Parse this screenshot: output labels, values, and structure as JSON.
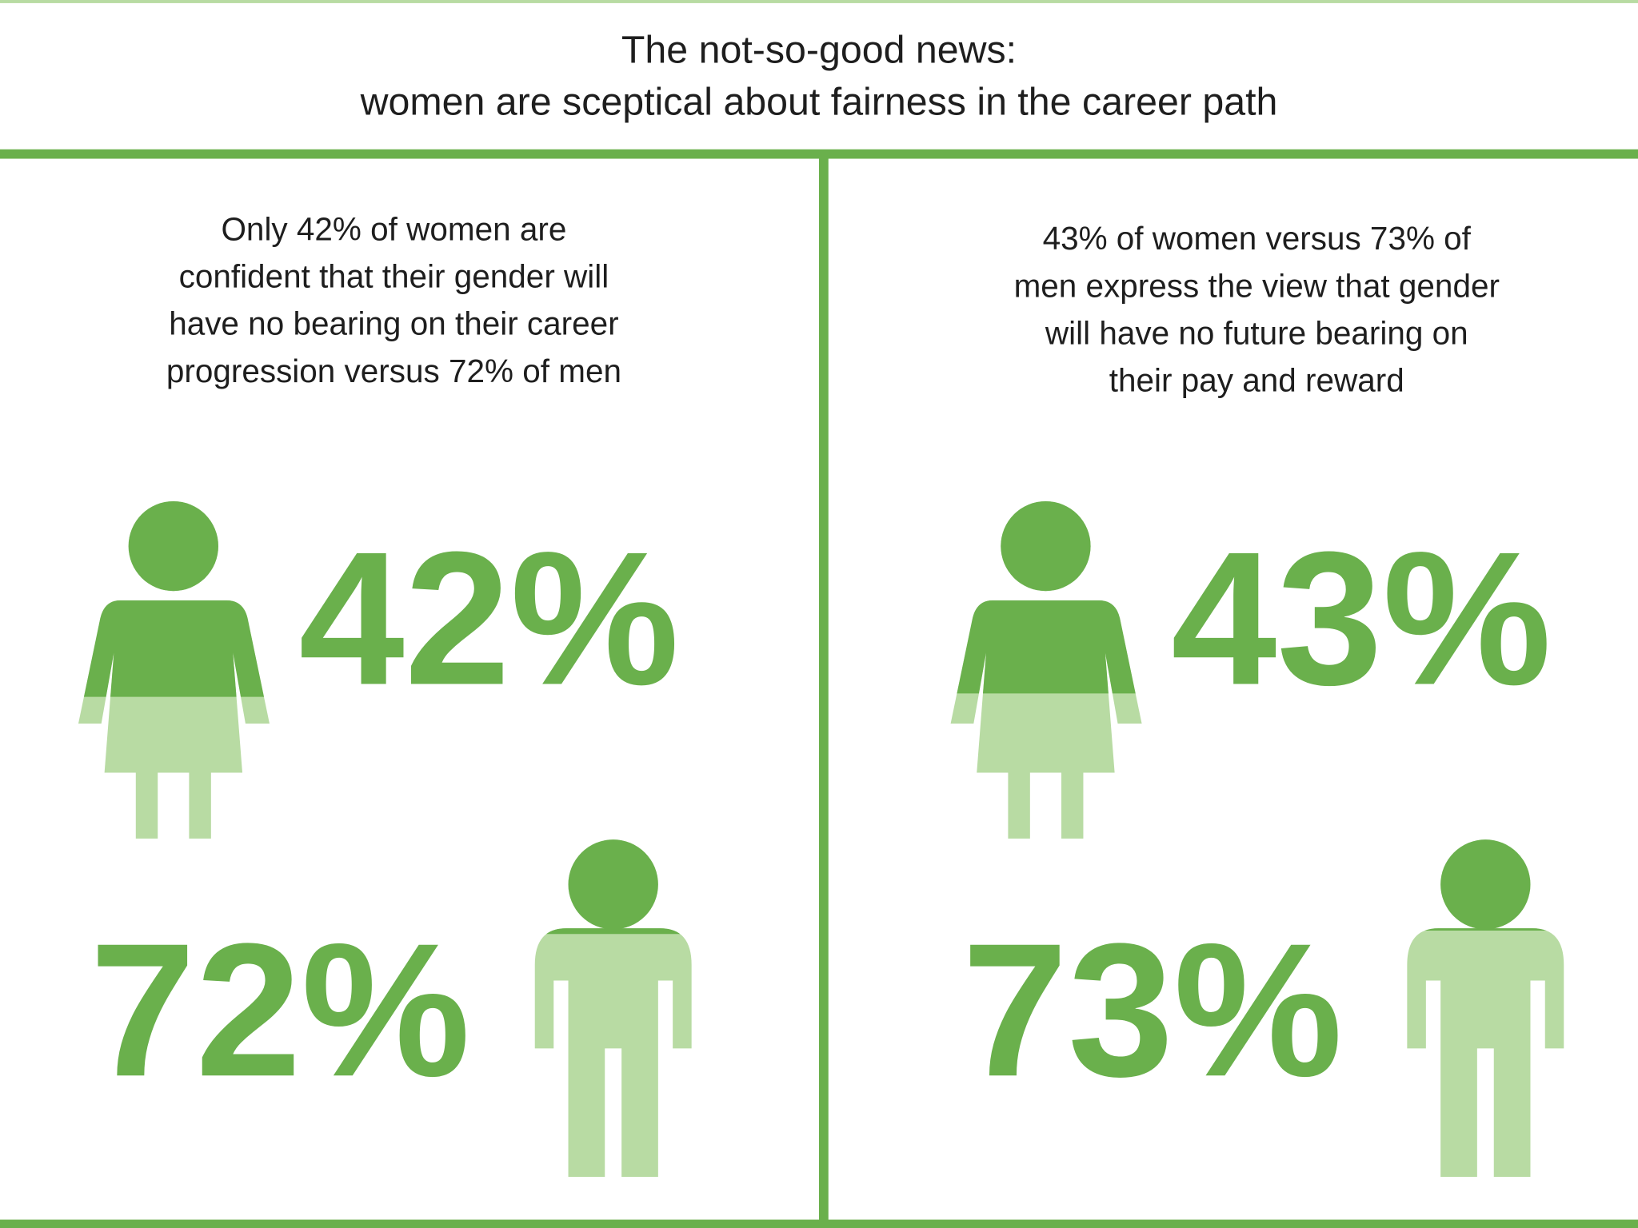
{
  "header": {
    "title": "The not-so-good news:",
    "subtitle": "women are sceptical about fairness in the career path"
  },
  "panels": [
    {
      "text": [
        "Only 42% of women are",
        "confident that their gender will",
        "have no bearing on their career",
        "progression versus 72% of men"
      ],
      "women": {
        "value": 42,
        "label": "42%"
      },
      "men": {
        "value": 72,
        "label": "72%"
      }
    },
    {
      "text": [
        "43% of women versus 73% of",
        "men express the view that gender",
        "will have no future bearing on",
        "their pay and reward"
      ],
      "women": {
        "value": 43,
        "label": "43%"
      },
      "men": {
        "value": 73,
        "label": "73%"
      }
    }
  ],
  "colors": {
    "dark": "#6ab04c",
    "light": "#b8dba3"
  }
}
